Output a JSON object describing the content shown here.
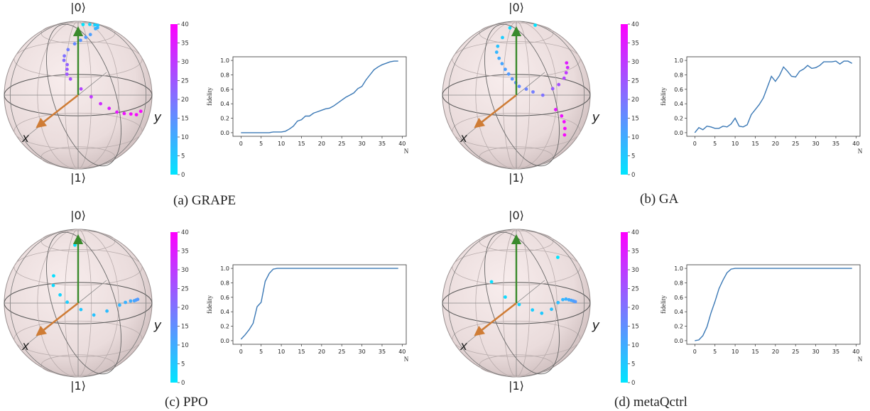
{
  "chart_data": [
    {
      "type": "line",
      "caption": "(a) GRAPE",
      "xlabel": "N",
      "ylabel": "fidelity",
      "xlim": [
        0,
        39
      ],
      "ylim": [
        0,
        1
      ],
      "xticks": [
        "0",
        "5",
        "10",
        "15",
        "20",
        "25",
        "30",
        "35",
        "40"
      ],
      "yticks": [
        "0.0",
        "0.2",
        "0.4",
        "0.6",
        "0.8",
        "1.0"
      ],
      "x": [
        0,
        1,
        2,
        3,
        4,
        5,
        6,
        7,
        8,
        9,
        10,
        11,
        12,
        13,
        14,
        15,
        16,
        17,
        18,
        19,
        20,
        21,
        22,
        23,
        24,
        25,
        26,
        27,
        28,
        29,
        30,
        31,
        32,
        33,
        34,
        35,
        36,
        37,
        38,
        39
      ],
      "values": [
        0,
        0,
        0,
        0,
        0,
        0,
        0,
        0,
        0.01,
        0.01,
        0.01,
        0.02,
        0.05,
        0.09,
        0.16,
        0.18,
        0.23,
        0.23,
        0.27,
        0.29,
        0.31,
        0.33,
        0.34,
        0.37,
        0.41,
        0.45,
        0.49,
        0.52,
        0.55,
        0.61,
        0.64,
        0.73,
        0.8,
        0.87,
        0.91,
        0.94,
        0.96,
        0.98,
        0.99,
        0.99
      ],
      "bloch": {
        "top_label": "|0⟩",
        "bottom_label": "|1⟩",
        "x_label": "x",
        "y_label": "y",
        "colorbar": {
          "min": 0,
          "max": 40,
          "ticks": [
            "0",
            "5",
            "10",
            "15",
            "20",
            "25",
            "30",
            "35",
            "40"
          ],
          "low_color": "#00e5ff",
          "high_color": "#ff00ff"
        },
        "points": [
          {
            "az": 1.45,
            "el": 86,
            "c": 0
          },
          {
            "az": 1.9,
            "el": 80,
            "c": 2
          },
          {
            "az": 2.0,
            "el": 75,
            "c": 3
          },
          {
            "az": 2.2,
            "el": 70,
            "c": 4
          },
          {
            "az": 2.6,
            "el": 58,
            "c": 8
          },
          {
            "az": 2.7,
            "el": 55,
            "c": 9
          },
          {
            "az": 2.9,
            "el": 44,
            "c": 12
          },
          {
            "az": 3.0,
            "el": 40,
            "c": 13
          },
          {
            "az": 3.1,
            "el": 36,
            "c": 14
          },
          {
            "az": 3.2,
            "el": 32,
            "c": 16
          },
          {
            "az": 3.3,
            "el": 26,
            "c": 18
          },
          {
            "az": 3.35,
            "el": 20,
            "c": 20
          },
          {
            "az": 3.35,
            "el": 16,
            "c": 21
          },
          {
            "az": 3.3,
            "el": 12,
            "c": 23
          },
          {
            "az": 3.3,
            "el": 8,
            "c": 24
          },
          {
            "az": 3.3,
            "el": 4,
            "c": 25
          },
          {
            "az": 3.25,
            "el": 0,
            "c": 26
          },
          {
            "az": 3.1,
            "el": -8,
            "c": 28
          },
          {
            "az": 2.95,
            "el": -14,
            "c": 30
          },
          {
            "az": 2.8,
            "el": -19,
            "c": 32
          },
          {
            "az": 2.65,
            "el": -22,
            "c": 34
          },
          {
            "az": 2.5,
            "el": -24,
            "c": 36
          },
          {
            "az": 2.35,
            "el": -24,
            "c": 37
          },
          {
            "az": 2.2,
            "el": -23,
            "c": 38
          },
          {
            "az": 2.05,
            "el": -22,
            "c": 39
          },
          {
            "az": 1.95,
            "el": -18,
            "c": 39
          }
        ]
      }
    },
    {
      "type": "line",
      "caption": "(b) GA",
      "xlabel": "N",
      "ylabel": "fidelity",
      "xlim": [
        0,
        39
      ],
      "ylim": [
        0,
        1
      ],
      "xticks": [
        "0",
        "5",
        "10",
        "15",
        "20",
        "25",
        "30",
        "35",
        "40"
      ],
      "yticks": [
        "0.0",
        "0.2",
        "0.4",
        "0.6",
        "0.8",
        "1.0"
      ],
      "x": [
        0,
        1,
        2,
        3,
        4,
        5,
        6,
        7,
        8,
        9,
        10,
        11,
        12,
        13,
        14,
        15,
        16,
        17,
        18,
        19,
        20,
        21,
        22,
        23,
        24,
        25,
        26,
        27,
        28,
        29,
        30,
        31,
        32,
        33,
        34,
        35,
        36,
        37,
        38,
        39
      ],
      "values": [
        0.0,
        0.07,
        0.04,
        0.09,
        0.08,
        0.06,
        0.06,
        0.09,
        0.08,
        0.12,
        0.2,
        0.09,
        0.08,
        0.11,
        0.25,
        0.32,
        0.39,
        0.48,
        0.63,
        0.78,
        0.71,
        0.79,
        0.91,
        0.85,
        0.78,
        0.77,
        0.85,
        0.88,
        0.93,
        0.89,
        0.9,
        0.93,
        0.98,
        0.98,
        0.98,
        0.99,
        0.95,
        0.99,
        0.99,
        0.96
      ],
      "bloch": {
        "top_label": "|0⟩",
        "bottom_label": "|1⟩",
        "x_label": "x",
        "y_label": "y",
        "colorbar": {
          "min": 0,
          "max": 40,
          "ticks": [
            "0",
            "5",
            "10",
            "15",
            "20",
            "25",
            "30",
            "35",
            "40"
          ],
          "low_color": "#00e5ff",
          "high_color": "#ff00ff"
        },
        "points": [
          {
            "az": 2.1,
            "el": 72,
            "c": 0
          },
          {
            "az": 3.3,
            "el": 55,
            "c": 2
          },
          {
            "az": 3.4,
            "el": 40,
            "c": 4
          },
          {
            "az": 3.45,
            "el": 30,
            "c": 6
          },
          {
            "az": 3.45,
            "el": 24,
            "c": 8
          },
          {
            "az": 3.4,
            "el": 18,
            "c": 10
          },
          {
            "az": 3.35,
            "el": 13,
            "c": 11
          },
          {
            "az": 3.3,
            "el": 8,
            "c": 12
          },
          {
            "az": 3.25,
            "el": 4,
            "c": 13
          },
          {
            "az": 3.2,
            "el": 0,
            "c": 14
          },
          {
            "az": 3.15,
            "el": -3,
            "c": 15
          },
          {
            "az": 3.1,
            "el": -6,
            "c": 16
          },
          {
            "az": 3.0,
            "el": -8,
            "c": 17
          },
          {
            "az": 2.9,
            "el": -10,
            "c": 18
          },
          {
            "az": 2.75,
            "el": -12,
            "c": 20
          },
          {
            "az": 2.6,
            "el": -6,
            "c": 24
          },
          {
            "az": 2.5,
            "el": -2,
            "c": 26
          },
          {
            "az": 2.4,
            "el": 4,
            "c": 28
          },
          {
            "az": 2.35,
            "el": 9,
            "c": 30
          },
          {
            "az": 2.3,
            "el": 14,
            "c": 33
          },
          {
            "az": 2.3,
            "el": 18,
            "c": 35
          },
          {
            "az": 2.5,
            "el": -22,
            "c": 36
          },
          {
            "az": 2.35,
            "el": -26,
            "c": 37
          },
          {
            "az": 2.25,
            "el": -30,
            "c": 38
          },
          {
            "az": 2.15,
            "el": -35,
            "c": 39
          },
          {
            "az": 2.05,
            "el": -40,
            "c": 39
          }
        ]
      }
    },
    {
      "type": "line",
      "caption": "(c) PPO",
      "xlabel": "N",
      "ylabel": "fidelity",
      "xlim": [
        0,
        39
      ],
      "ylim": [
        0,
        1
      ],
      "xticks": [
        "0",
        "5",
        "10",
        "15",
        "20",
        "25",
        "30",
        "35",
        "40"
      ],
      "yticks": [
        "0.0",
        "0.2",
        "0.4",
        "0.6",
        "0.8",
        "1.0"
      ],
      "x": [
        0,
        1,
        2,
        3,
        4,
        5,
        6,
        7,
        8,
        9,
        10,
        11,
        12,
        13,
        14,
        15,
        16,
        17,
        18,
        19,
        20,
        21,
        22,
        23,
        24,
        25,
        26,
        27,
        28,
        29,
        30,
        31,
        32,
        33,
        34,
        35,
        36,
        37,
        38,
        39
      ],
      "values": [
        0.02,
        0.08,
        0.15,
        0.24,
        0.47,
        0.53,
        0.82,
        0.93,
        0.99,
        1.0,
        1.0,
        1.0,
        1.0,
        1.0,
        1.0,
        1.0,
        1.0,
        1.0,
        1.0,
        1.0,
        1.0,
        1.0,
        1.0,
        1.0,
        1.0,
        1.0,
        1.0,
        1.0,
        1.0,
        1.0,
        1.0,
        1.0,
        1.0,
        1.0,
        1.0,
        1.0,
        1.0,
        1.0,
        1.0,
        1.0
      ],
      "bloch": {
        "top_label": "|0⟩",
        "bottom_label": "|1⟩",
        "x_label": "x",
        "y_label": "y",
        "colorbar": {
          "min": 0,
          "max": 40,
          "ticks": [
            "0",
            "5",
            "10",
            "15",
            "20",
            "25",
            "30",
            "35",
            "40"
          ],
          "low_color": "#00e5ff",
          "high_color": "#ff00ff"
        },
        "points": [
          {
            "az": 3.2,
            "el": 40,
            "c": 0
          },
          {
            "az": 3.5,
            "el": 10,
            "c": 1
          },
          {
            "az": 3.5,
            "el": 2,
            "c": 2
          },
          {
            "az": 3.4,
            "el": -6,
            "c": 3
          },
          {
            "az": 3.3,
            "el": -12,
            "c": 4
          },
          {
            "az": 3.1,
            "el": -18,
            "c": 5
          },
          {
            "az": 2.9,
            "el": -22,
            "c": 6
          },
          {
            "az": 2.7,
            "el": -18,
            "c": 7
          },
          {
            "az": 2.5,
            "el": -12,
            "c": 8
          },
          {
            "az": 2.4,
            "el": -9,
            "c": 9
          },
          {
            "az": 2.3,
            "el": -7,
            "c": 10
          },
          {
            "az": 2.22,
            "el": -6,
            "c": 11
          },
          {
            "az": 2.18,
            "el": -5,
            "c": 12
          },
          {
            "az": 2.14,
            "el": -4,
            "c": 13
          }
        ]
      }
    },
    {
      "type": "line",
      "caption": "(d) metaQctrl",
      "xlabel": "N",
      "ylabel": "fidelity",
      "xlim": [
        0,
        39
      ],
      "ylim": [
        0,
        1
      ],
      "xticks": [
        "0",
        "5",
        "10",
        "15",
        "20",
        "25",
        "30",
        "35",
        "40"
      ],
      "yticks": [
        "0.0",
        "0.2",
        "0.4",
        "0.6",
        "0.8",
        "1.0"
      ],
      "x": [
        0,
        1,
        2,
        3,
        4,
        5,
        6,
        7,
        8,
        9,
        10,
        11,
        12,
        13,
        14,
        15,
        16,
        17,
        18,
        19,
        20,
        21,
        22,
        23,
        24,
        25,
        26,
        27,
        28,
        29,
        30,
        31,
        32,
        33,
        34,
        35,
        36,
        37,
        38,
        39
      ],
      "values": [
        0.0,
        0.01,
        0.07,
        0.19,
        0.38,
        0.54,
        0.72,
        0.84,
        0.94,
        0.99,
        1.0,
        1.0,
        1.0,
        1.0,
        1.0,
        1.0,
        1.0,
        1.0,
        1.0,
        1.0,
        1.0,
        1.0,
        1.0,
        1.0,
        1.0,
        1.0,
        1.0,
        1.0,
        1.0,
        1.0,
        1.0,
        1.0,
        1.0,
        1.0,
        1.0,
        1.0,
        1.0,
        1.0,
        1.0,
        1.0
      ],
      "bloch": {
        "top_label": "|0⟩",
        "bottom_label": "|1⟩",
        "x_label": "x",
        "y_label": "y",
        "colorbar": {
          "min": 0,
          "max": 40,
          "ticks": [
            "0",
            "5",
            "10",
            "15",
            "20",
            "25",
            "30",
            "35",
            "40"
          ],
          "low_color": "#00e5ff",
          "high_color": "#ff00ff"
        },
        "points": [
          {
            "az": 2.4,
            "el": 30,
            "c": 0
          },
          {
            "az": 3.5,
            "el": 5,
            "c": 1
          },
          {
            "az": 3.3,
            "el": -8,
            "c": 2
          },
          {
            "az": 3.1,
            "el": -14,
            "c": 3
          },
          {
            "az": 2.9,
            "el": -18,
            "c": 4
          },
          {
            "az": 2.75,
            "el": -20,
            "c": 5
          },
          {
            "az": 2.6,
            "el": -16,
            "c": 6
          },
          {
            "az": 2.5,
            "el": -10,
            "c": 7
          },
          {
            "az": 2.42,
            "el": -7,
            "c": 8
          },
          {
            "az": 2.36,
            "el": -6,
            "c": 9
          },
          {
            "az": 2.3,
            "el": -6,
            "c": 10
          },
          {
            "az": 2.25,
            "el": -6,
            "c": 11
          },
          {
            "az": 2.2,
            "el": -6,
            "c": 12
          },
          {
            "az": 2.15,
            "el": -6,
            "c": 13
          }
        ]
      }
    }
  ]
}
